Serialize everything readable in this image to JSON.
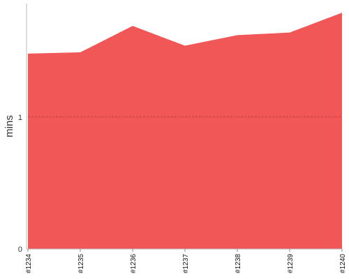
{
  "chart_data": {
    "type": "area",
    "ylabel": "mins",
    "categories": [
      "#1234",
      "#1235",
      "#1236",
      "#1237",
      "#1238",
      "#1239",
      "#1240"
    ],
    "series": [
      {
        "color": "#f25757",
        "values": [
          1.48,
          1.49,
          1.69,
          1.54,
          1.62,
          1.64,
          1.79
        ]
      }
    ],
    "ylim": [
      0,
      1.86
    ],
    "yticks": [
      0,
      1
    ],
    "grid": true
  }
}
